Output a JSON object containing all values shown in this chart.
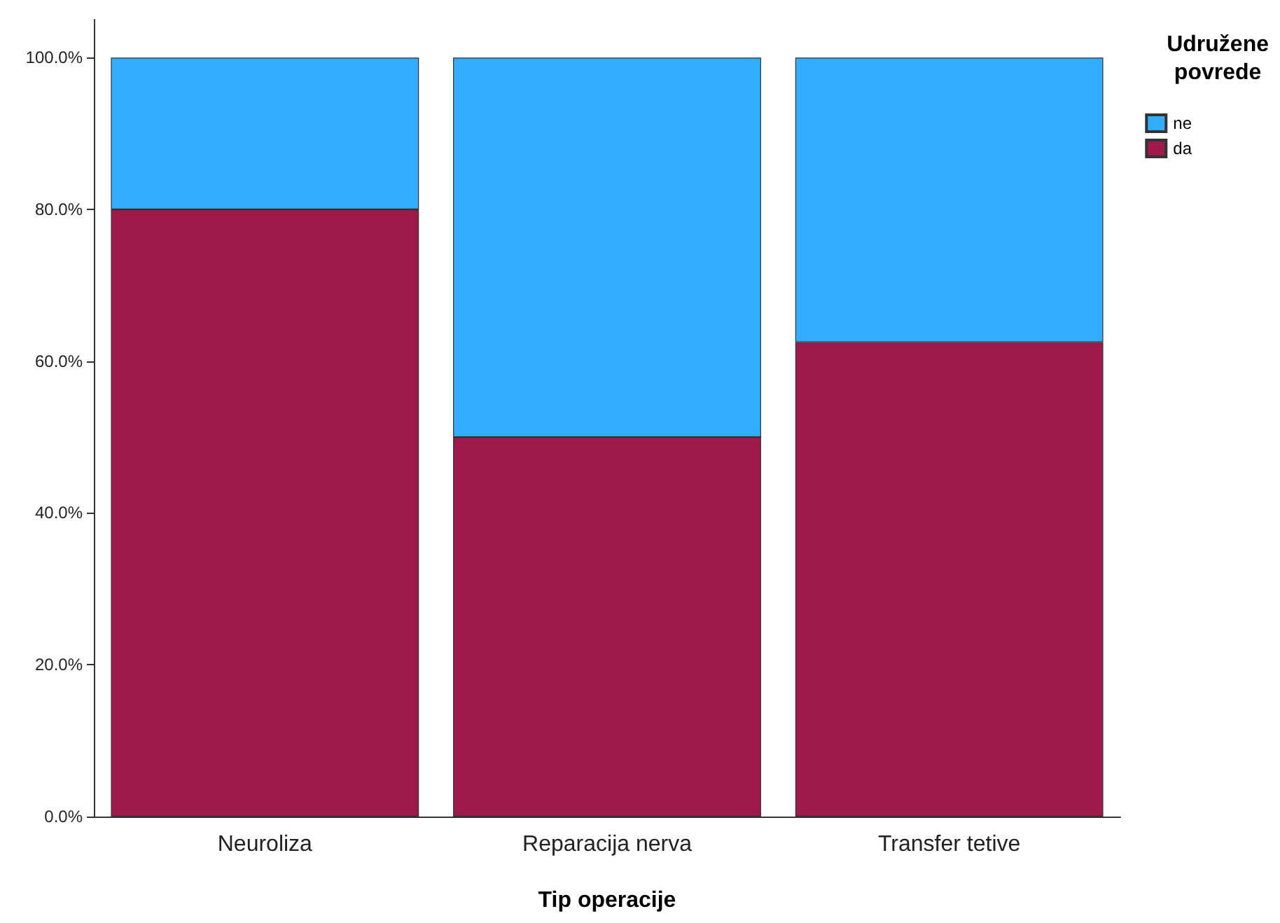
{
  "chart_data": {
    "type": "bar",
    "stacked": true,
    "xlabel": "Tip operacije",
    "legend_title": "Udružene povrede",
    "legend": "top right",
    "grid": false,
    "categories": [
      "Neuroliza",
      "Reparacija nerva",
      "Transfer tetive"
    ],
    "series": [
      {
        "name": "da",
        "color": "#9e1a4b",
        "values": [
          80,
          50,
          62.5
        ]
      },
      {
        "name": "ne",
        "color": "#33adff",
        "values": [
          20,
          50,
          37.5
        ]
      }
    ],
    "ylim": [
      0,
      105
    ],
    "yticks": [
      {
        "value": 0,
        "label": "0.0%"
      },
      {
        "value": 20,
        "label": "20.0%"
      },
      {
        "value": 40,
        "label": "40.0%"
      },
      {
        "value": 60,
        "label": "60.0%"
      },
      {
        "value": 80,
        "label": "80.0%"
      },
      {
        "value": 100,
        "label": "100.0%"
      }
    ]
  }
}
